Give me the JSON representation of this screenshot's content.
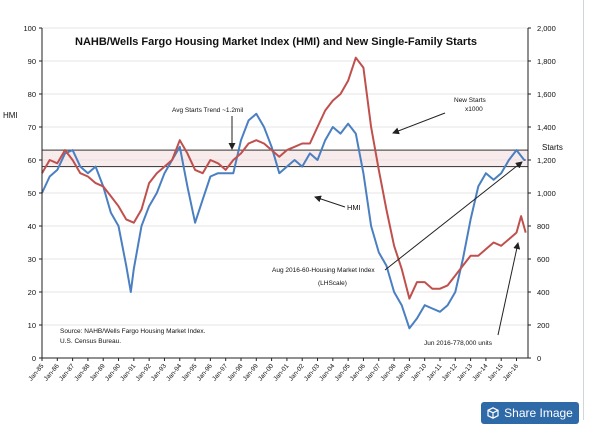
{
  "chart_data": {
    "type": "line",
    "title": "NAHB/Wells Fargo Housing Market Index (HMI) and New Single-Family Starts",
    "ylabel_left": "HMI",
    "ylabel_right": "Starts",
    "ylim_left": [
      0,
      100
    ],
    "ylim_right": [
      0,
      2000
    ],
    "yticks_left": [
      "0",
      "10",
      "20",
      "30",
      "40",
      "50",
      "60",
      "70",
      "80",
      "90",
      "100"
    ],
    "yticks_right": [
      "0",
      "200",
      "400",
      "600",
      "800",
      "1,000",
      "1,200",
      "1,400",
      "1,600",
      "1,800",
      "2,000"
    ],
    "xticks": [
      "Jan-85",
      "Jan-86",
      "Jan-87",
      "Jan-88",
      "Jan-89",
      "Jan-90",
      "Jan-91",
      "Jan-92",
      "Jan-93",
      "Jan-94",
      "Jan-95",
      "Jan-96",
      "Jan-97",
      "Jan-98",
      "Jan-99",
      "Jan-00",
      "Jan-01",
      "Jan-02",
      "Jan-03",
      "Jan-04",
      "Jan-05",
      "Jan-06",
      "Jan-07",
      "Jan-08",
      "Jan-09",
      "Jan-10",
      "Jan-11",
      "Jan-12",
      "Jan-13",
      "Jan-14",
      "Jan-15",
      "Jan-16"
    ],
    "x_range": [
      1985.0,
      2016.75
    ],
    "band_hmi": [
      58,
      63
    ],
    "series": [
      {
        "name": "HMI",
        "axis": "left",
        "color": "#4a7fc1",
        "x": [
          1985.0,
          1985.5,
          1986.0,
          1986.5,
          1987.0,
          1987.5,
          1988.0,
          1988.5,
          1989.0,
          1989.5,
          1990.0,
          1990.5,
          1990.8,
          1991.0,
          1991.5,
          1992.0,
          1992.5,
          1993.0,
          1993.5,
          1994.0,
          1994.5,
          1995.0,
          1995.5,
          1996.0,
          1996.5,
          1997.0,
          1997.5,
          1998.0,
          1998.5,
          1999.0,
          1999.5,
          2000.0,
          2000.5,
          2001.0,
          2001.5,
          2002.0,
          2002.5,
          2003.0,
          2003.5,
          2004.0,
          2004.5,
          2005.0,
          2005.5,
          2006.0,
          2006.5,
          2007.0,
          2007.5,
          2008.0,
          2008.5,
          2009.0,
          2009.5,
          2010.0,
          2010.5,
          2011.0,
          2011.5,
          2012.0,
          2012.5,
          2013.0,
          2013.5,
          2014.0,
          2014.5,
          2015.0,
          2015.5,
          2016.0,
          2016.5,
          2016.6
        ],
        "y": [
          50,
          55,
          57,
          62,
          63,
          58,
          56,
          58,
          52,
          44,
          40,
          28,
          20,
          27,
          40,
          46,
          50,
          56,
          60,
          64,
          52,
          41,
          48,
          55,
          56,
          56,
          56,
          66,
          72,
          74,
          70,
          64,
          56,
          58,
          60,
          58,
          62,
          60,
          66,
          70,
          68,
          71,
          68,
          56,
          40,
          32,
          28,
          20,
          16,
          9,
          12,
          16,
          15,
          14,
          16,
          20,
          30,
          42,
          52,
          56,
          54,
          56,
          60,
          63,
          60,
          60
        ]
      },
      {
        "name": "New Starts",
        "axis": "right",
        "color": "#c0504d",
        "x": [
          1985.0,
          1985.5,
          1986.0,
          1986.5,
          1987.0,
          1987.5,
          1988.0,
          1988.5,
          1989.0,
          1989.5,
          1990.0,
          1990.5,
          1991.0,
          1991.5,
          1992.0,
          1992.5,
          1993.0,
          1993.5,
          1994.0,
          1994.5,
          1995.0,
          1995.5,
          1996.0,
          1996.5,
          1997.0,
          1997.5,
          1998.0,
          1998.5,
          1999.0,
          1999.5,
          2000.0,
          2000.5,
          2001.0,
          2001.5,
          2002.0,
          2002.5,
          2003.0,
          2003.5,
          2004.0,
          2004.5,
          2005.0,
          2005.5,
          2006.0,
          2006.5,
          2007.0,
          2007.5,
          2008.0,
          2008.5,
          2009.0,
          2009.5,
          2010.0,
          2010.5,
          2011.0,
          2011.5,
          2012.0,
          2012.5,
          2013.0,
          2013.5,
          2014.0,
          2014.5,
          2015.0,
          2015.5,
          2016.0,
          2016.3,
          2016.6
        ],
        "y": [
          1120,
          1200,
          1180,
          1260,
          1200,
          1120,
          1100,
          1060,
          1040,
          980,
          920,
          840,
          820,
          900,
          1060,
          1120,
          1160,
          1200,
          1320,
          1240,
          1140,
          1120,
          1200,
          1180,
          1140,
          1200,
          1240,
          1300,
          1320,
          1300,
          1260,
          1220,
          1260,
          1280,
          1300,
          1300,
          1400,
          1500,
          1560,
          1600,
          1680,
          1820,
          1760,
          1400,
          1140,
          900,
          680,
          540,
          360,
          460,
          460,
          420,
          420,
          440,
          500,
          560,
          620,
          620,
          660,
          700,
          680,
          720,
          760,
          860,
          760
        ]
      }
    ],
    "annotations": {
      "avg_starts": "Avg Starts Trend ~1.2mil",
      "new_starts_1": "New Starts",
      "new_starts_2": "x1000",
      "hmi": "HMI",
      "aug_hmi_1": "Aug 2016-60-Housing Market Index",
      "aug_hmi_2": "(LHScale)",
      "jun_starts": "Jun 2016-778,000 units",
      "source_1": "Source: NAHB/Wells Fargo Housing Market Index.",
      "source_2": "U.S. Census Bureau."
    }
  },
  "share_button": {
    "label": "Share Image",
    "icon": "cube-share-icon"
  }
}
